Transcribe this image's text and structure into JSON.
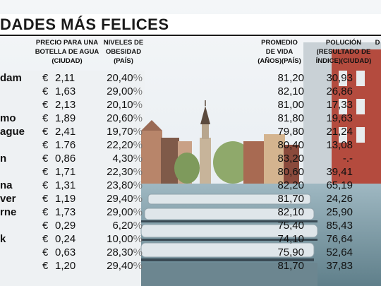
{
  "title": "DADES MÁS FELICES",
  "headers": {
    "water": "PRECIO PARA UNA\nBOTELLA DE AGUA\n(CIUDAD)",
    "obesity": "NIVELES DE\nOBESIDAD\n(PAÍS)",
    "life": "PROMEDIO\nDE VIDA\n(AÑOS)(PAÍS)",
    "pollution": "POLUCIÓN\n(RESULTADO DE\nÍNDICE)(CIUDAD)",
    "extra": "D"
  },
  "currency": "€",
  "percent_sign": "%",
  "rows": [
    {
      "city": "dam",
      "water": "2,11",
      "obesity": "20,40",
      "life": "81,20",
      "pollution": "30,93"
    },
    {
      "city": "",
      "water": "1,63",
      "obesity": "29,00",
      "life": "82,10",
      "pollution": "26,86"
    },
    {
      "city": "",
      "water": "2,13",
      "obesity": "20,10",
      "life": "81,00",
      "pollution": "17,33"
    },
    {
      "city": "mo",
      "water": "1,89",
      "obesity": "20,60",
      "life": "81,80",
      "pollution": "19,63"
    },
    {
      "city": "ague",
      "water": "2,41",
      "obesity": "19,70",
      "life": "79,80",
      "pollution": "21,24"
    },
    {
      "city": "",
      "water": "1.76",
      "obesity": "22,20",
      "life": "80,40",
      "pollution": "13,08"
    },
    {
      "city": "n",
      "water": "0,86",
      "obesity": "4,30",
      "life": "83,20",
      "pollution": "-.-"
    },
    {
      "city": "",
      "water": "1,71",
      "obesity": "22,30",
      "life": "80,60",
      "pollution": "39,41"
    },
    {
      "city": "na",
      "water": "1,31",
      "obesity": "23,80",
      "life": "82,20",
      "pollution": "65,19"
    },
    {
      "city": "ver",
      "water": "1,19",
      "obesity": "29,40",
      "life": "81,70",
      "pollution": "24,26"
    },
    {
      "city": "rne",
      "water": "1,73",
      "obesity": "29,00",
      "life": "82,10",
      "pollution": "25,90"
    },
    {
      "city": "",
      "water": "0,29",
      "obesity": "6,20",
      "life": "75,40",
      "pollution": "85,43"
    },
    {
      "city": "k",
      "water": "0,24",
      "obesity": "10,00",
      "life": "74,10",
      "pollution": "76,64"
    },
    {
      "city": "",
      "water": "0,63",
      "obesity": "28,30",
      "life": "75,90",
      "pollution": "52,64"
    },
    {
      "city": "",
      "water": "1,20",
      "obesity": "29,40",
      "life": "81,70",
      "pollution": "37,83"
    }
  ]
}
